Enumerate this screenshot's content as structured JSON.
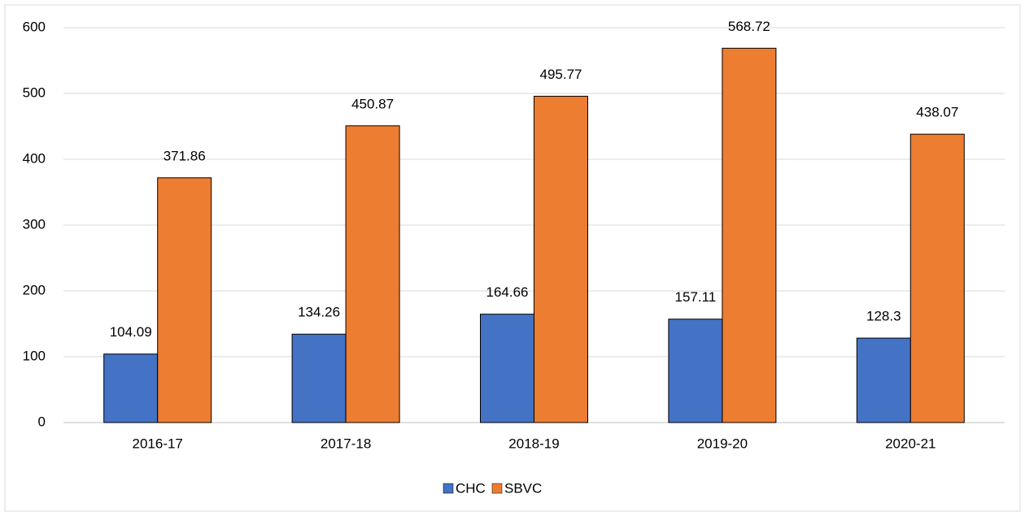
{
  "chart_data": {
    "type": "bar",
    "categories": [
      "2016-17",
      "2017-18",
      "2018-19",
      "2019-20",
      "2020-21"
    ],
    "series": [
      {
        "name": "CHC",
        "color": "#4472c4",
        "values": [
          104.09,
          134.26,
          164.66,
          157.11,
          128.3
        ]
      },
      {
        "name": "SBVC",
        "color": "#ed7d31",
        "values": [
          371.86,
          450.87,
          495.77,
          568.72,
          438.07
        ]
      }
    ],
    "ylim": [
      0,
      600
    ],
    "yticks": [
      0,
      100,
      200,
      300,
      400,
      500,
      600
    ],
    "grid": true,
    "legend": "bottom"
  }
}
